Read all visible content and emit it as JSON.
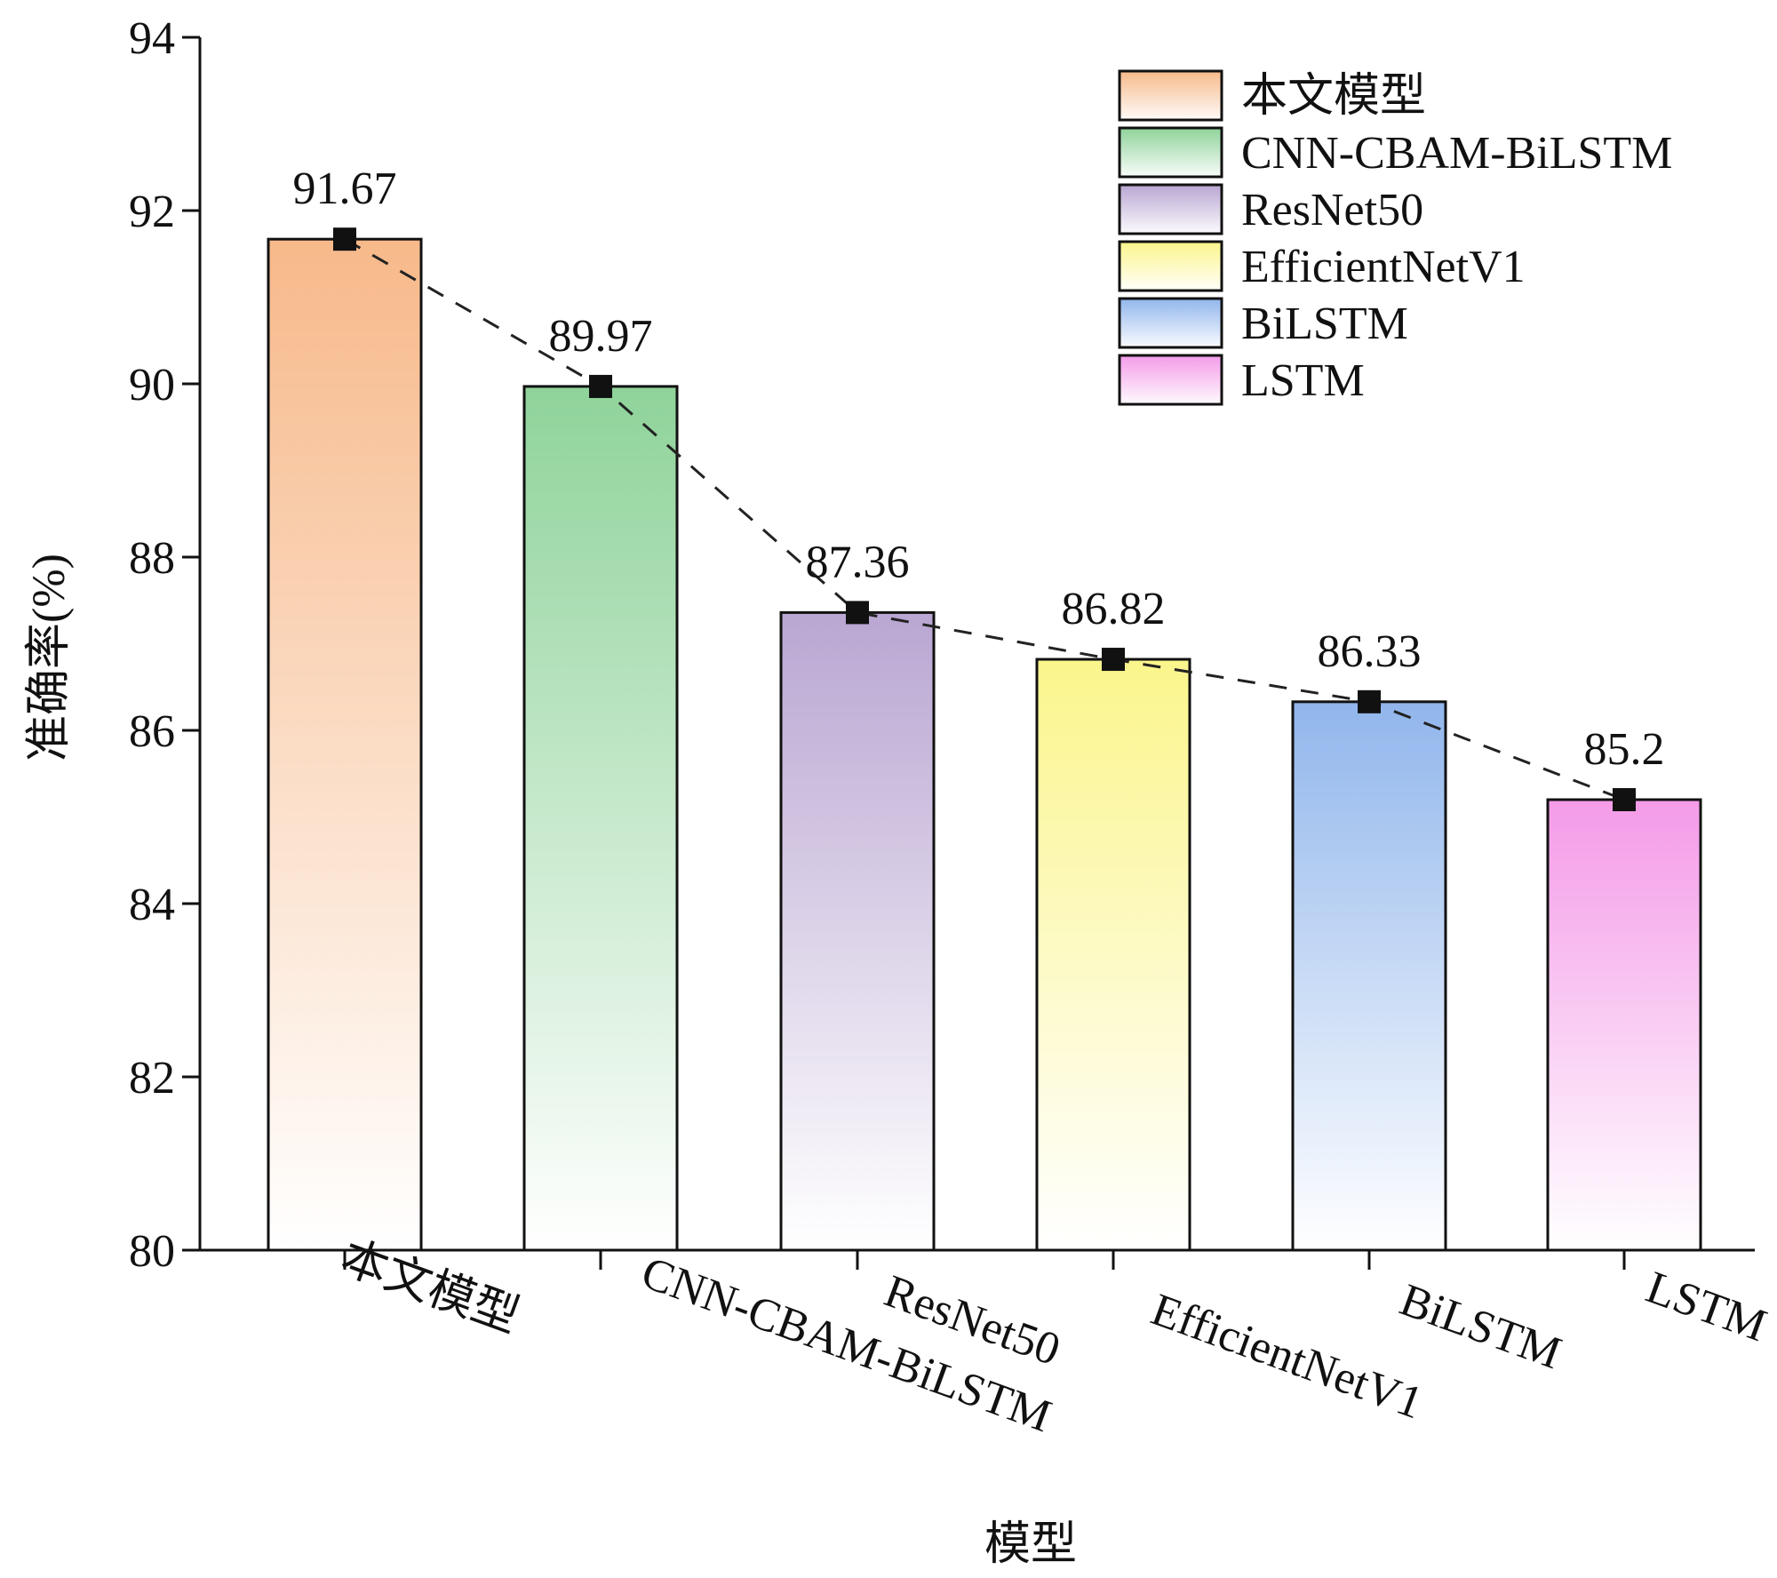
{
  "chart_data": {
    "type": "bar",
    "title": "",
    "xlabel": "模型",
    "ylabel": "准确率(%)",
    "ylim": [
      80,
      94
    ],
    "yticks": [
      80,
      82,
      84,
      86,
      88,
      90,
      92,
      94
    ],
    "categories": [
      "本文模型",
      "CNN-CBAM-BiLSTM",
      "ResNet50",
      "EfficientNetV1",
      "BiLSTM",
      "LSTM"
    ],
    "values": [
      91.67,
      89.97,
      87.36,
      86.82,
      86.33,
      85.2
    ],
    "value_labels": [
      "91.67",
      "89.97",
      "87.36",
      "86.82",
      "86.33",
      "85.2"
    ],
    "colors": [
      "#f7b98a",
      "#8fd39a",
      "#b9a6d2",
      "#fbf58c",
      "#91b6ec",
      "#f49be8"
    ],
    "overlay": {
      "type": "line",
      "style": "dashed",
      "marker": "square",
      "color": "#222222"
    },
    "legend": {
      "position": "top-right",
      "entries": [
        "本文模型",
        "CNN-CBAM-BiLSTM",
        "ResNet50",
        "EfficientNetV1",
        "BiLSTM",
        "LSTM"
      ]
    },
    "grid": false
  }
}
